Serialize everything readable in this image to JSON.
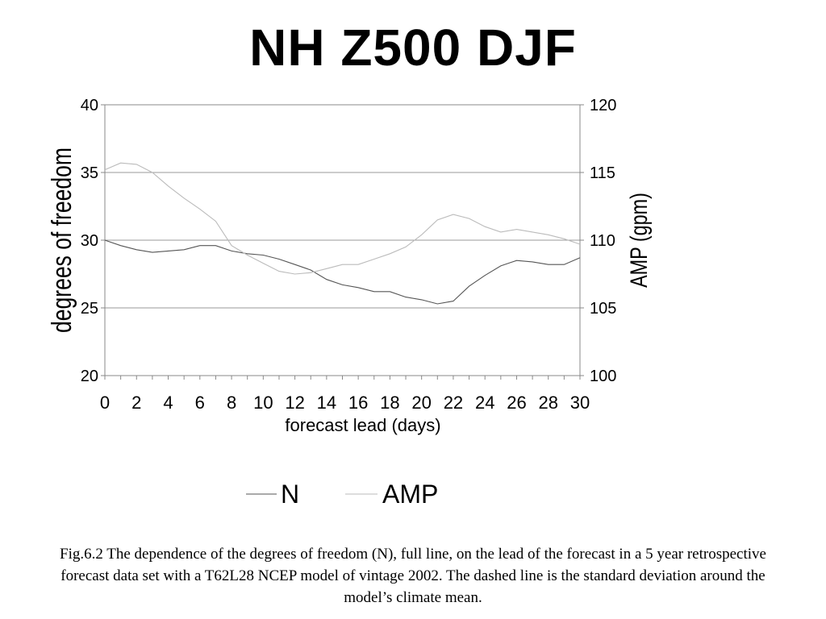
{
  "chart_data": {
    "type": "line",
    "title": "NH Z500 DJF",
    "xlabel": "forecast lead (days)",
    "ylabel": "degrees of freedom",
    "y2label": "AMP (gpm)",
    "xlim": [
      0,
      30
    ],
    "ylim": [
      20,
      40
    ],
    "y2lim": [
      100,
      120
    ],
    "xticks": [
      "0",
      "2",
      "4",
      "6",
      "8",
      "10",
      "12",
      "14",
      "16",
      "18",
      "20",
      "22",
      "24",
      "26",
      "28",
      "30"
    ],
    "yticks": [
      "20",
      "25",
      "30",
      "35",
      "40"
    ],
    "y2ticks": [
      "100",
      "105",
      "110",
      "115",
      "120"
    ],
    "grid": true,
    "legend": "bottom",
    "x": [
      0,
      1,
      2,
      3,
      4,
      5,
      6,
      7,
      8,
      9,
      10,
      11,
      12,
      13,
      14,
      15,
      16,
      17,
      18,
      19,
      20,
      21,
      22,
      23,
      24,
      25,
      26,
      27,
      28,
      29,
      30
    ],
    "series": [
      {
        "name": "N",
        "axis": "left",
        "color": "#555555",
        "values": [
          30.0,
          29.6,
          29.3,
          29.1,
          29.2,
          29.3,
          29.6,
          29.6,
          29.2,
          29.0,
          28.9,
          28.6,
          28.2,
          27.8,
          27.1,
          26.7,
          26.5,
          26.2,
          26.2,
          25.8,
          25.6,
          25.3,
          25.5,
          26.6,
          27.4,
          28.1,
          28.5,
          28.4,
          28.2,
          28.2,
          28.7
        ]
      },
      {
        "name": "AMP",
        "axis": "right",
        "color": "#bbbbbb",
        "values": [
          115.2,
          115.7,
          115.6,
          115.0,
          114.0,
          113.1,
          112.3,
          111.4,
          109.6,
          108.9,
          108.3,
          107.7,
          107.5,
          107.6,
          107.9,
          108.2,
          108.2,
          108.6,
          109.0,
          109.5,
          110.4,
          111.5,
          111.9,
          111.6,
          111.0,
          110.6,
          110.8,
          110.6,
          110.4,
          110.1,
          109.7
        ]
      }
    ]
  },
  "caption": "Fig.6.2 The dependence of the degrees of freedom (N), full line, on the lead of the forecast in a 5 year retrospective forecast data set with a T62L28 NCEP model of vintage 2002. The dashed line is the standard deviation around the model’s climate mean."
}
